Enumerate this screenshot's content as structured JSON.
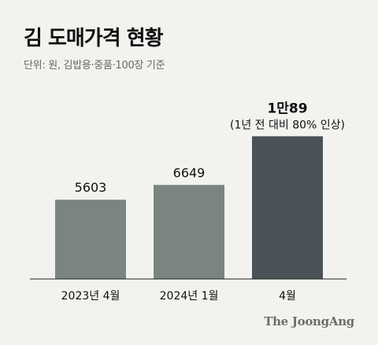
{
  "title": "김 도매가격 현황",
  "subtitle": "단위: 원, 김밥용·중품·100장 기준",
  "brand": "The JoongAng",
  "chart_data": {
    "type": "bar",
    "categories": [
      "2023년 4월",
      "2024년 1월",
      "4월"
    ],
    "values": [
      5603,
      6649,
      10089
    ],
    "value_labels": [
      "5603",
      "6649",
      "1만89"
    ],
    "annotation": "(1년 전 대비 80% 인상)",
    "ylim": [
      0,
      11000
    ],
    "grid": false,
    "colors": [
      "#7a8581",
      "#7a8581",
      "#4a5257"
    ],
    "xlabel": "",
    "ylabel": ""
  }
}
